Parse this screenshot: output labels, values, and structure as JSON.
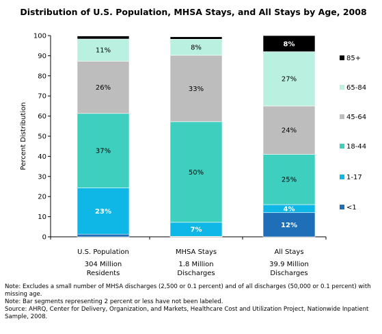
{
  "chart_data": {
    "type": "bar",
    "stacked": true,
    "title": "Distribution of U.S. Population, MHSA Stays, and All Stays by Age, 2008",
    "ylabel": "Percent Distribution",
    "xlabel": "",
    "ylim": [
      0,
      100
    ],
    "yticks": [
      0,
      10,
      20,
      30,
      40,
      50,
      60,
      70,
      80,
      90,
      100
    ],
    "categories": [
      "U.S. Population",
      "MHSA Stays",
      "All Stays"
    ],
    "category_sublabels": [
      [
        "304 Million",
        "Residents"
      ],
      [
        "1.8 Million",
        "Discharges"
      ],
      [
        "39.9 Million",
        "Discharges"
      ]
    ],
    "series": [
      {
        "name": "<1",
        "color": "#1f6fb8",
        "values": [
          1.3,
          0.2,
          12
        ],
        "labels": [
          "",
          "",
          "12%"
        ],
        "label_color": "#ffffff"
      },
      {
        "name": "1-17",
        "color": "#0fb7e6",
        "values": [
          23,
          7,
          4
        ],
        "labels": [
          "23%",
          "7%",
          "4%"
        ],
        "label_color": "#ffffff"
      },
      {
        "name": "18-44",
        "color": "#3ecfbf",
        "values": [
          37,
          50,
          25
        ],
        "labels": [
          "37%",
          "50%",
          "25%"
        ],
        "label_color": "#000000"
      },
      {
        "name": "45-64",
        "color": "#bdbdbd",
        "values": [
          26,
          33,
          24
        ],
        "labels": [
          "26%",
          "33%",
          "24%"
        ],
        "label_color": "#000000"
      },
      {
        "name": "65-84",
        "color": "#b9f0e0",
        "values": [
          11,
          8,
          27
        ],
        "labels": [
          "11%",
          "8%",
          "27%"
        ],
        "label_color": "#000000"
      },
      {
        "name": "85+",
        "color": "#000000",
        "values": [
          1.5,
          1.2,
          8
        ],
        "labels": [
          "",
          "",
          "8%"
        ],
        "label_color": "#ffffff"
      }
    ],
    "grid": false,
    "legend_position": "right"
  },
  "notes": [
    "Note: Excludes a small number of MHSA discharges (2,500 or 0.1 percent) and of all discharges (50,000 or 0.1 percent) with missing age.",
    "Note: Bar segments representing 2 percent or less have not been labeled.",
    "Source:  AHRQ, Center for Delivery, Organization, and Markets, Healthcare Cost and  Utilization Project,  Nationwide Inpatient Sample, 2008."
  ]
}
